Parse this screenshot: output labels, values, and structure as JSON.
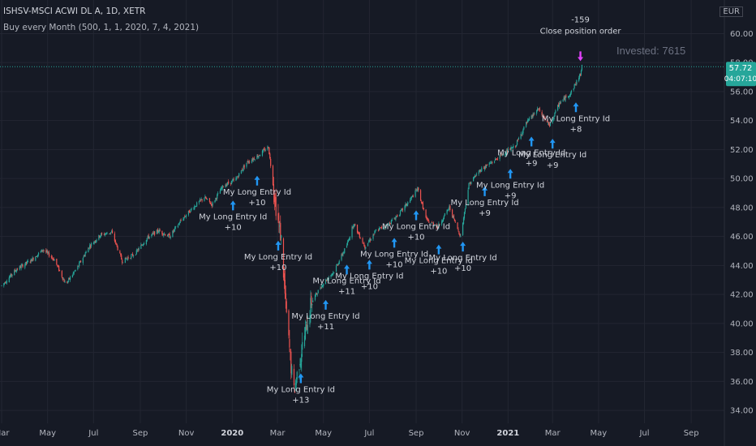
{
  "header": {
    "symbol": "ISHSV-MSCI ACWI DL A, 1D, XETR",
    "strategy": "Buy every Month (500, 1, 1, 2020, 7, 4, 2021)",
    "currency": "EUR"
  },
  "chart_data": {
    "type": "candlestick",
    "y_axis": {
      "ticks": [
        "60.00",
        "58.00",
        "56.00",
        "54.00",
        "52.00",
        "50.00",
        "48.00",
        "46.00",
        "44.00",
        "42.00",
        "40.00",
        "38.00",
        "36.00",
        "34.00"
      ],
      "ylim": [
        33.5,
        61.2
      ]
    },
    "x_axis": {
      "ticks": [
        "Mar",
        "May",
        "Jul",
        "Sep",
        "Nov",
        "2020",
        "Mar",
        "May",
        "Jul",
        "Sep",
        "Nov",
        "2021",
        "Mar",
        "May",
        "Jul",
        "Sep"
      ]
    },
    "price_path": [
      [
        "2019-03-01",
        42.6
      ],
      [
        "2019-03-20",
        43.7
      ],
      [
        "2019-04-10",
        44.4
      ],
      [
        "2019-04-25",
        45.1
      ],
      [
        "2019-05-10",
        44.4
      ],
      [
        "2019-05-25",
        42.7
      ],
      [
        "2019-06-10",
        43.9
      ],
      [
        "2019-06-25",
        45.3
      ],
      [
        "2019-07-10",
        46.1
      ],
      [
        "2019-07-25",
        46.3
      ],
      [
        "2019-08-08",
        44.3
      ],
      [
        "2019-08-25",
        44.8
      ],
      [
        "2019-09-10",
        45.9
      ],
      [
        "2019-09-25",
        46.4
      ],
      [
        "2019-10-10",
        46.0
      ],
      [
        "2019-10-25",
        47.1
      ],
      [
        "2019-11-10",
        48.0
      ],
      [
        "2019-11-25",
        48.7
      ],
      [
        "2019-12-05",
        48.2
      ],
      [
        "2019-12-20",
        49.5
      ],
      [
        "2020-01-05",
        49.9
      ],
      [
        "2020-01-20",
        51.1
      ],
      [
        "2020-02-05",
        51.6
      ],
      [
        "2020-02-18",
        52.2
      ],
      [
        "2020-02-28",
        48.0
      ],
      [
        "2020-03-06",
        45.8
      ],
      [
        "2020-03-12",
        41.2
      ],
      [
        "2020-03-19",
        37.0
      ],
      [
        "2020-03-23",
        35.3
      ],
      [
        "2020-04-01",
        37.9
      ],
      [
        "2020-04-15",
        41.5
      ],
      [
        "2020-05-01",
        42.8
      ],
      [
        "2020-05-15",
        43.6
      ],
      [
        "2020-06-01",
        45.4
      ],
      [
        "2020-06-10",
        46.9
      ],
      [
        "2020-06-25",
        45.3
      ],
      [
        "2020-07-10",
        46.4
      ],
      [
        "2020-07-25",
        46.8
      ],
      [
        "2020-08-10",
        47.6
      ],
      [
        "2020-08-25",
        48.6
      ],
      [
        "2020-09-03",
        49.3
      ],
      [
        "2020-09-15",
        47.1
      ],
      [
        "2020-09-30",
        46.7
      ],
      [
        "2020-10-15",
        48.0
      ],
      [
        "2020-10-30",
        46.0
      ],
      [
        "2020-11-10",
        49.6
      ],
      [
        "2020-11-25",
        50.6
      ],
      [
        "2020-12-10",
        51.1
      ],
      [
        "2020-12-25",
        51.7
      ],
      [
        "2021-01-10",
        52.2
      ],
      [
        "2021-01-25",
        53.8
      ],
      [
        "2021-02-10",
        54.8
      ],
      [
        "2021-02-25",
        53.6
      ],
      [
        "2021-03-10",
        55.2
      ],
      [
        "2021-03-25",
        55.9
      ],
      [
        "2021-04-07",
        57.2
      ],
      [
        "2021-04-09",
        57.72
      ]
    ],
    "entries": [
      {
        "date": "2020-01-02",
        "label": "My Long Entry Id",
        "qty": "+10"
      },
      {
        "date": "2020-02-03",
        "label": "My Long Entry Id",
        "qty": "+10"
      },
      {
        "date": "2020-03-02",
        "label": "My Long Entry Id",
        "qty": "+10"
      },
      {
        "date": "2020-04-01",
        "label": "My Long Entry Id",
        "qty": "+13"
      },
      {
        "date": "2020-05-04",
        "label": "My Long Entry Id",
        "qty": "+11"
      },
      {
        "date": "2020-06-01",
        "label": "My Long Entry Id",
        "qty": "+11"
      },
      {
        "date": "2020-07-01",
        "label": "My Long Entry Id",
        "qty": "+10"
      },
      {
        "date": "2020-08-03",
        "label": "My Long Entry Id",
        "qty": "+10"
      },
      {
        "date": "2020-09-01",
        "label": "My Long Entry Id",
        "qty": "+10"
      },
      {
        "date": "2020-10-01",
        "label": "My Long Entry Id",
        "qty": "+10"
      },
      {
        "date": "2020-11-02",
        "label": "My Long Entry Id",
        "qty": "+10"
      },
      {
        "date": "2020-12-01",
        "label": "My Long Entry Id",
        "qty": "+9"
      },
      {
        "date": "2021-01-04",
        "label": "My Long Entry Id",
        "qty": "+9"
      },
      {
        "date": "2021-02-01",
        "label": "My Long Entry Id",
        "qty": "+9"
      },
      {
        "date": "2021-03-01",
        "label": "My Long Entry Id",
        "qty": "+9"
      },
      {
        "date": "2021-04-01",
        "label": "My Long Entry Id",
        "qty": "+8"
      }
    ],
    "exit": {
      "date": "2021-04-07",
      "label": "Close position order",
      "qty": "-159"
    },
    "invested_label": "Invested: 7615",
    "last_price": {
      "value": "57.72",
      "countdown": "04:07:10"
    },
    "colors": {
      "up": "#26a69a",
      "down": "#ef5350",
      "entry": "#2196f3",
      "exit": "#e040fb",
      "price_line": "#26a69a",
      "last_tag": "#26a69a",
      "background": "#161a25",
      "grid": "#232632"
    }
  }
}
